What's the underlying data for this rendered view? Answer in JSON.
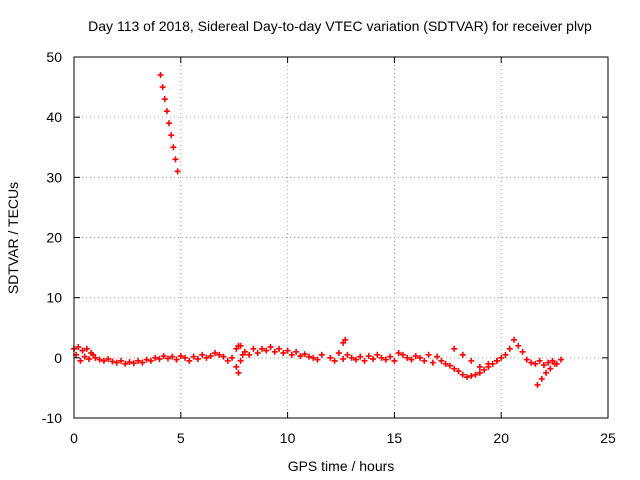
{
  "chart_data": {
    "type": "scatter",
    "title": "Day 113 of 2018, Sidereal Day-to-day VTEC variation (SDTVAR) for receiver plvp",
    "xlabel": "GPS time / hours",
    "ylabel": "SDTVAR / TECUs",
    "xlim": [
      0,
      25
    ],
    "ylim": [
      -10,
      50
    ],
    "xticks": [
      0,
      5,
      10,
      15,
      20,
      25
    ],
    "yticks": [
      -10,
      0,
      10,
      20,
      30,
      40,
      50
    ],
    "xtick_labels": [
      "0",
      "5",
      "10",
      "15",
      "20",
      "25"
    ],
    "ytick_labels": [
      "-10",
      "0",
      "10",
      "20",
      "30",
      "40",
      "50"
    ],
    "grid": true,
    "marker": "+",
    "series": [
      {
        "name": "SDTVAR",
        "color": "#ff0000",
        "x": [
          4.05,
          4.15,
          4.25,
          4.35,
          4.45,
          4.55,
          4.65,
          4.75,
          4.85,
          0.0,
          0.1,
          0.2,
          0.3,
          0.4,
          0.5,
          0.6,
          0.7,
          0.8,
          0.9,
          1.0,
          1.2,
          1.4,
          1.6,
          1.8,
          2.0,
          2.2,
          2.4,
          2.6,
          2.8,
          3.0,
          3.2,
          3.4,
          3.6,
          3.8,
          4.0,
          4.2,
          4.4,
          4.6,
          4.8,
          5.0,
          5.2,
          5.4,
          5.6,
          5.8,
          6.0,
          6.2,
          6.4,
          6.6,
          6.8,
          7.0,
          7.2,
          7.4,
          7.6,
          7.7,
          7.8,
          7.9,
          8.0,
          8.2,
          8.4,
          8.6,
          8.8,
          9.0,
          9.2,
          9.4,
          9.6,
          9.8,
          10.0,
          10.2,
          10.4,
          10.6,
          10.8,
          11.0,
          11.2,
          11.4,
          11.6,
          12.0,
          12.2,
          12.4,
          12.6,
          12.8,
          13.0,
          13.2,
          13.4,
          13.6,
          13.8,
          14.0,
          14.2,
          14.4,
          14.6,
          14.8,
          15.0,
          15.2,
          15.4,
          15.6,
          15.8,
          16.0,
          16.2,
          16.4,
          16.6,
          16.8,
          17.0,
          17.2,
          17.4,
          17.6,
          17.8,
          18.0,
          18.2,
          18.4,
          18.6,
          18.8,
          19.0,
          19.2,
          19.4,
          19.6,
          19.8,
          20.0,
          17.8,
          18.2,
          18.6,
          19.0,
          19.4,
          19.8,
          20.2,
          20.4,
          20.6,
          20.8,
          21.0,
          21.2,
          21.4,
          21.6,
          21.8,
          22.0,
          22.2,
          22.4,
          22.6,
          22.8,
          21.7,
          21.9,
          22.1,
          22.3,
          22.5,
          12.6,
          12.7,
          7.6,
          7.7,
          7.8
        ],
        "y": [
          47.0,
          45.0,
          43.0,
          41.0,
          39.0,
          37.0,
          35.0,
          33.0,
          31.0,
          1.5,
          0.5,
          1.8,
          -0.5,
          1.2,
          0.2,
          1.5,
          -0.2,
          0.8,
          0.5,
          0.0,
          -0.3,
          -0.5,
          -0.2,
          -0.6,
          -0.8,
          -0.5,
          -1.0,
          -0.7,
          -0.9,
          -0.5,
          -0.8,
          -0.3,
          -0.5,
          0.0,
          -0.2,
          0.3,
          -0.1,
          0.2,
          -0.3,
          0.3,
          0.0,
          -0.5,
          0.2,
          -0.2,
          0.5,
          0.0,
          0.3,
          0.8,
          0.5,
          0.2,
          -0.5,
          0.0,
          1.5,
          2.0,
          -0.5,
          0.5,
          1.0,
          0.5,
          1.5,
          0.8,
          1.5,
          1.2,
          1.8,
          1.0,
          1.5,
          0.8,
          1.2,
          0.5,
          1.0,
          0.3,
          0.6,
          0.2,
          0.0,
          -0.3,
          0.5,
          0.0,
          -0.5,
          0.8,
          -0.2,
          0.5,
          0.0,
          -0.3,
          0.2,
          -0.5,
          0.3,
          -0.2,
          0.5,
          0.0,
          -0.3,
          0.2,
          -0.5,
          0.8,
          0.5,
          0.0,
          -0.3,
          0.3,
          0.0,
          -0.5,
          0.5,
          -0.8,
          0.2,
          -0.5,
          -1.0,
          -1.3,
          -1.8,
          -2.2,
          -2.8,
          -3.2,
          -3.0,
          -2.8,
          -2.5,
          -2.0,
          -1.5,
          -1.0,
          -0.5,
          0.0,
          1.5,
          0.5,
          -0.5,
          -1.5,
          -1.0,
          -0.5,
          0.5,
          1.5,
          3.0,
          2.0,
          1.0,
          -0.3,
          -0.8,
          -1.0,
          -0.5,
          -1.2,
          -0.8,
          -0.5,
          -1.0,
          -0.3,
          -4.5,
          -3.5,
          -2.5,
          -1.8,
          -1.0,
          2.5,
          3.0,
          -1.5,
          -2.5,
          2.0
        ]
      }
    ]
  }
}
